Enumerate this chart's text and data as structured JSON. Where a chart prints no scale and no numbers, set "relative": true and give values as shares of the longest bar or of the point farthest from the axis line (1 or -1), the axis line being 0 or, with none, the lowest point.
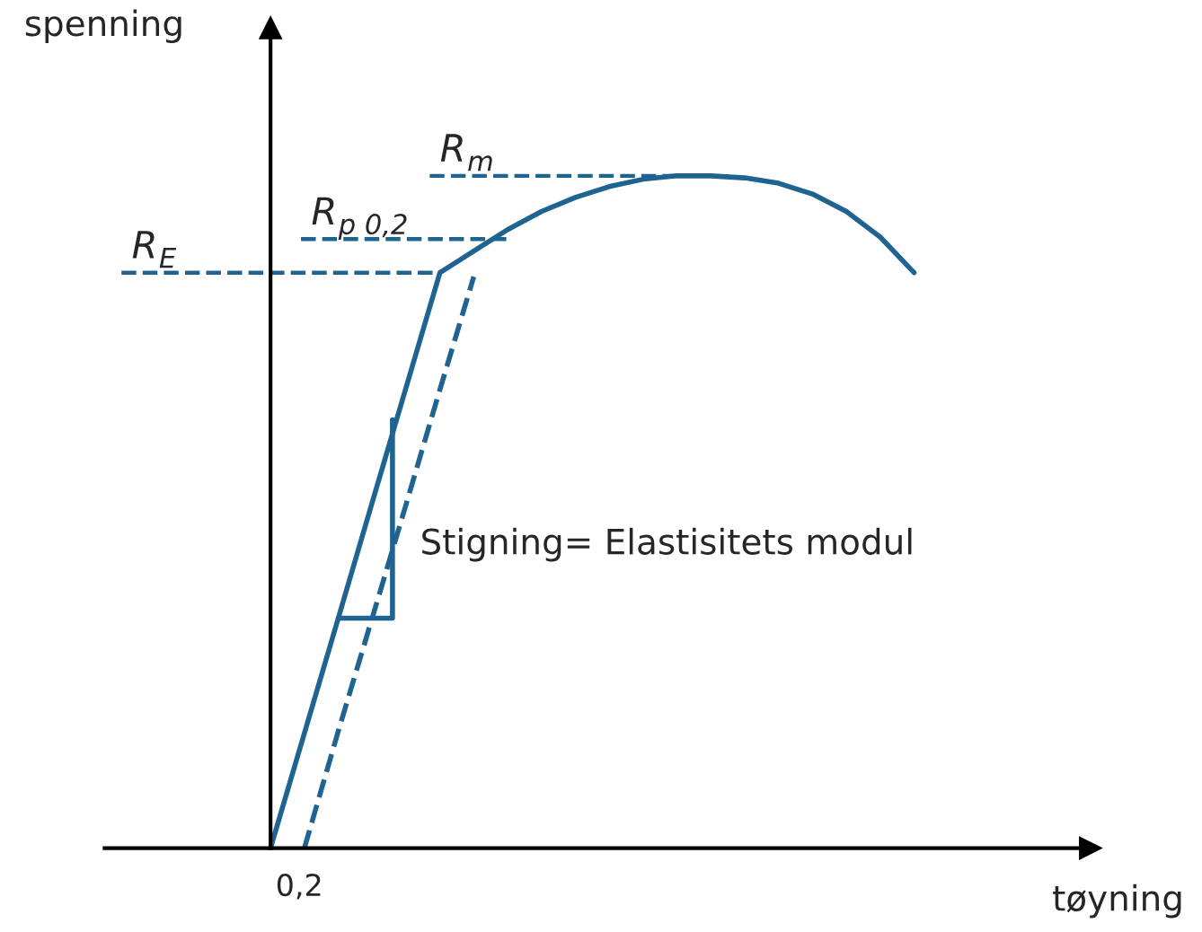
{
  "chart_data": {
    "type": "line",
    "relative": true,
    "xlabel": "tøyning",
    "ylabel": "spenning",
    "grid": false,
    "legend": false,
    "marker": "none",
    "categories": [
      null,
      null,
      null,
      null,
      null,
      null,
      null,
      null,
      null,
      null,
      null,
      null,
      null,
      null,
      null,
      null,
      null,
      null,
      null,
      null
    ],
    "series": [
      {
        "color": "#1f6391",
        "line_style": "solid",
        "values": [
          0,
          0.171,
          0.342,
          0.514,
          0.685,
          0.856,
          0.888,
          0.92,
          0.947,
          0.968,
          0.984,
          0.995,
          1.0,
          1.0,
          0.997,
          0.989,
          0.973,
          0.947,
          0.909,
          0.856
        ]
      },
      {
        "color": "#1f6391",
        "line_style": "dashed",
        "values": [
          null,
          0,
          0.174,
          0.342,
          0.511,
          0.682,
          0.85,
          null,
          null,
          null,
          null,
          null,
          null,
          null,
          null,
          null,
          null,
          null,
          null,
          null
        ]
      }
    ],
    "ref_lines": [
      {
        "axis": "y",
        "value": 0.856,
        "label": "R$_{E}$",
        "color": "#1f6391",
        "line_style": "dashed"
      },
      {
        "axis": "y",
        "value": 0.906,
        "label": "R$_{p 0,2}$",
        "color": "#1f6391",
        "line_style": "dashed"
      },
      {
        "axis": "y",
        "value": 1.0,
        "label": "R$_{m}$",
        "color": "#1f6391",
        "line_style": "dashed"
      }
    ],
    "annotations": [
      "0,2",
      "Stigning= Elastisitets modul"
    ]
  }
}
